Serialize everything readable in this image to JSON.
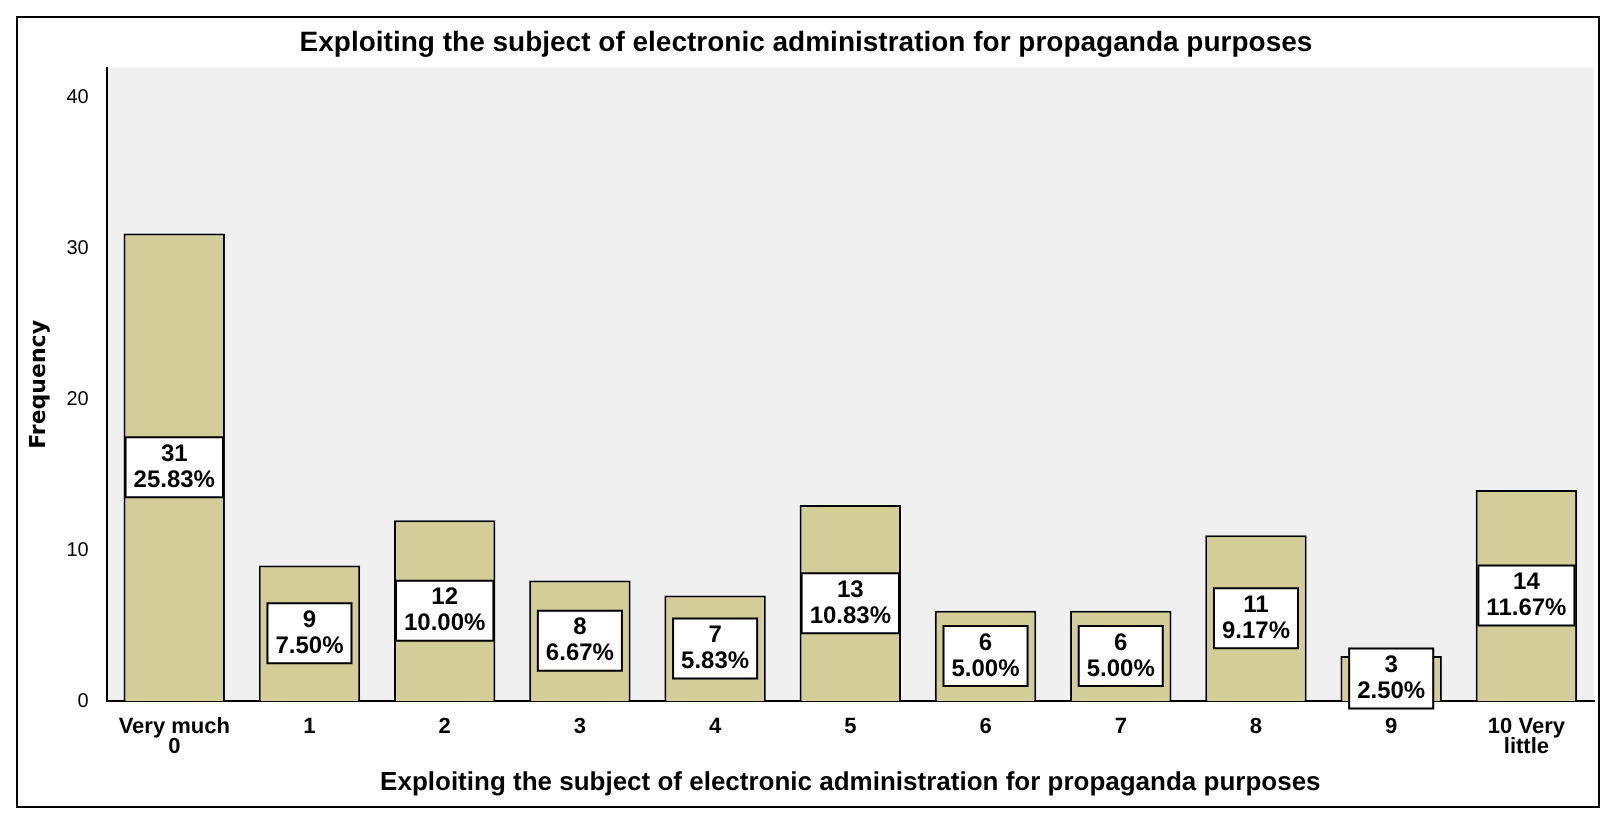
{
  "chart_data": {
    "type": "bar",
    "title": "Exploiting the subject of electronic administration for propaganda purposes",
    "xlabel": "Exploiting the subject of electronic administration for propaganda purposes",
    "ylabel": "Frequency",
    "categories": [
      "Very much 0",
      "1",
      "2",
      "3",
      "4",
      "5",
      "6",
      "7",
      "8",
      "9",
      "10 Very little"
    ],
    "values": [
      31,
      9,
      12,
      8,
      7,
      13,
      6,
      6,
      11,
      3,
      14
    ],
    "value_labels": [
      "31 25.83%",
      "9 7.50%",
      "12 10.00%",
      "8 6.67%",
      "7 5.83%",
      "13 10.83%",
      "6 5.00%",
      "6 5.00%",
      "11 9.17%",
      "3 2.50%",
      "14 11.67%"
    ],
    "color": "#d3ce97",
    "ylim": [
      0,
      42
    ],
    "yticks": [
      0,
      10,
      20,
      30,
      40
    ],
    "grid": false,
    "legend": false
  }
}
